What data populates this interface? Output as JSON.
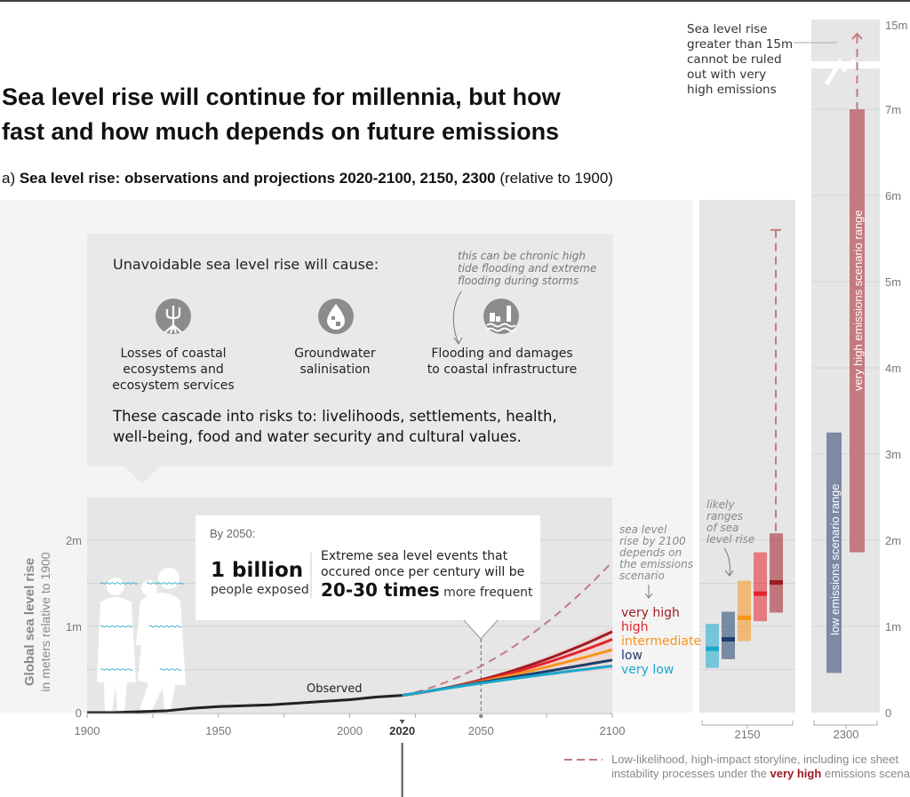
{
  "title_line1": "Sea level rise will continue for millennia, but how",
  "title_line2": "fast and how much depends on future emissions",
  "subtitle": {
    "prefix": "a) ",
    "bold": "Sea level rise: observations and projections 2020-2100, 2150, 2300",
    "suffix": " (relative to 1900)"
  },
  "impacts_box": {
    "heading": "Unavoidable sea level rise will cause:",
    "note": [
      "this can be chronic high",
      "tide flooding and extreme",
      "flooding during storms"
    ],
    "items": [
      {
        "icon": "mangrove-icon",
        "lines": [
          "Losses of coastal",
          "ecosystems and",
          "ecosystem services"
        ]
      },
      {
        "icon": "salt-water-drop-icon",
        "lines": [
          "Groundwater",
          "salinisation"
        ]
      },
      {
        "icon": "flooded-city-icon",
        "lines": [
          "Flooding and damages",
          "to coastal infrastructure"
        ]
      }
    ],
    "cascade": [
      "These cascade into risks to: livelihoods, settlements, health,",
      "well-being, food and water security and cultural values."
    ]
  },
  "callout_2050": {
    "heading": "By 2050:",
    "big1": "1 billion",
    "small1": "people exposed",
    "line1": "Extreme sea level events that",
    "line2": "occured once per century will be",
    "big2": "20-30 times",
    "small2": " more frequent"
  },
  "annotations": {
    "by2100": [
      "sea level",
      "rise by 2100",
      "depends on",
      "the emissions",
      "scenario"
    ],
    "likely": [
      "likely",
      "ranges",
      "of sea",
      "level rise"
    ],
    "gt15": [
      "Sea level rise",
      "greater than 15m",
      "cannot be ruled",
      "out with very",
      "high emissions"
    ],
    "observed": "Observed",
    "low_range": "low emissions scenario range",
    "vhigh_range": "very high emissions scenario range"
  },
  "legend": {
    "line1": "Low-likelihood, high-impact storyline, including ice sheet",
    "line2_prefix": "instability processes under the ",
    "line2_highlight": "very high",
    "line2_suffix": " emissions scenario"
  },
  "colors": {
    "very_high": "#9e1b22",
    "high": "#e3232b",
    "intermediate": "#f7941d",
    "low": "#1f3e6b",
    "very_low": "#19a8cc",
    "storyline": "#c47a7e",
    "observed": "#222222",
    "panel": "#e6e6e6"
  },
  "chart_data": {
    "type": "line",
    "ylabel": "Global sea level rise",
    "ylabel_sub": "in meters relative to 1900",
    "x_ticks": [
      "1900",
      "1950",
      "2000",
      "2020",
      "2050",
      "2100"
    ],
    "y_ticks_left": [
      "0",
      "1m",
      "2m"
    ],
    "y_ticks_right": [
      "0",
      "1m",
      "2m",
      "3m",
      "4m",
      "5m",
      "6m",
      "7m",
      "15m"
    ],
    "xlim": [
      1900,
      2100
    ],
    "ylim": [
      0,
      2.3
    ],
    "observed": {
      "x": [
        1900,
        1910,
        1920,
        1930,
        1940,
        1950,
        1960,
        1970,
        1980,
        1990,
        2000,
        2010,
        2020
      ],
      "y": [
        0,
        0.0,
        0.01,
        0.02,
        0.05,
        0.07,
        0.08,
        0.09,
        0.11,
        0.13,
        0.15,
        0.18,
        0.2
      ]
    },
    "projections": {
      "x": [
        2020,
        2050,
        2100
      ],
      "series": [
        {
          "name": "very high",
          "key": "very_high",
          "y": [
            0.2,
            0.38,
            0.94
          ],
          "y2150": [
            1.16,
            1.51,
            2.08
          ]
        },
        {
          "name": "high",
          "key": "high",
          "y": [
            0.2,
            0.37,
            0.85
          ],
          "y2150": [
            1.06,
            1.38,
            1.86
          ]
        },
        {
          "name": "intermediate",
          "key": "intermediate",
          "y": [
            0.2,
            0.36,
            0.73
          ],
          "y2150": [
            0.83,
            1.1,
            1.53
          ]
        },
        {
          "name": "low",
          "key": "low",
          "y": [
            0.2,
            0.35,
            0.61
          ],
          "y2150": [
            0.62,
            0.85,
            1.17
          ]
        },
        {
          "name": "very low",
          "key": "very_low",
          "y": [
            0.2,
            0.34,
            0.54
          ],
          "y2150": [
            0.52,
            0.74,
            1.03
          ]
        }
      ]
    },
    "storyline": {
      "x": [
        2020,
        2050,
        2100
      ],
      "y": [
        0.2,
        0.54,
        1.75
      ],
      "max_2150": 5.6,
      "max_2300": 15
    },
    "x_2150_label": "2150",
    "x_2300_label": "2300",
    "ranges_2300": [
      {
        "name": "low emissions scenario range",
        "key": "low",
        "min": 0.46,
        "max": 3.25
      },
      {
        "name": "very high emissions scenario range",
        "key": "very_high",
        "min": 1.86,
        "max": 7
      }
    ]
  }
}
